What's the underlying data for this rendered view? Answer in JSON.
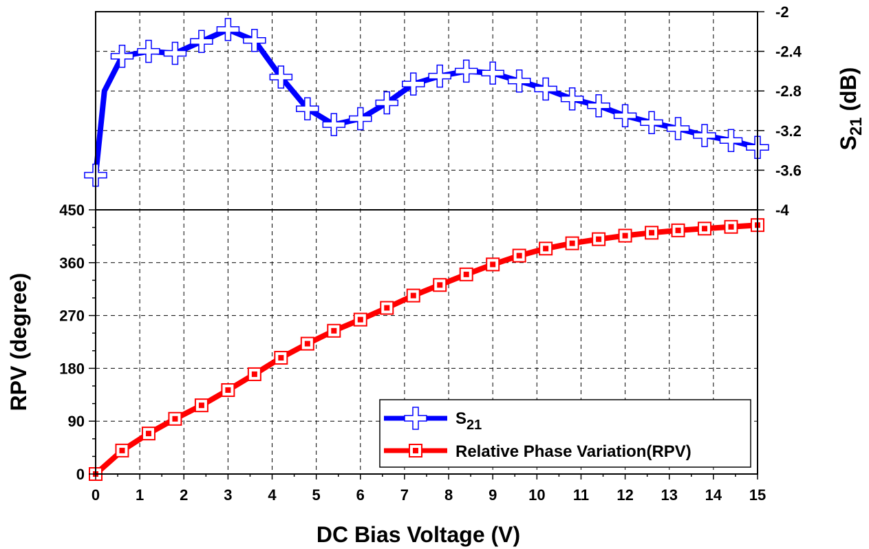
{
  "chart_data": {
    "type": "line",
    "xlabel": "DC Bias Voltage (V)",
    "xlim": [
      0,
      15
    ],
    "xticks": [
      "0",
      "1",
      "2",
      "3",
      "4",
      "5",
      "6",
      "7",
      "8",
      "9",
      "10",
      "11",
      "12",
      "13",
      "14",
      "15"
    ],
    "top_panel": {
      "ylabel_main": "S",
      "ylabel_sub": "21",
      "ylabel_unit": " (dB)",
      "ylim": [
        -4,
        -2
      ],
      "yticks": [
        "-2",
        "-2.4",
        "-2.8",
        "-3.2",
        "-3.6",
        "-4"
      ],
      "ytick_values": [
        -2,
        -2.4,
        -2.8,
        -3.2,
        -3.6,
        -4
      ],
      "axis_side": "right"
    },
    "bottom_panel": {
      "ylabel": "RPV (degree)",
      "ylim": [
        0,
        450
      ],
      "yticks": [
        "450",
        "360",
        "270",
        "180",
        "90",
        "0"
      ],
      "ytick_values": [
        450,
        360,
        270,
        180,
        90,
        0
      ],
      "axis_side": "left"
    },
    "grid": true,
    "legend_placement": "bottom-right",
    "series": [
      {
        "name": "S",
        "name_sub": "21",
        "panel": "top",
        "color": "#0000ff",
        "marker": "cross",
        "x": [
          0,
          0.2,
          0.6,
          1.2,
          1.8,
          2.4,
          3.0,
          3.6,
          4.2,
          4.8,
          5.4,
          6.0,
          6.6,
          7.2,
          7.8,
          8.4,
          9.0,
          9.6,
          10.2,
          10.8,
          11.4,
          12.0,
          12.6,
          13.2,
          13.8,
          14.4,
          15.0
        ],
        "y": [
          -3.65,
          -2.8,
          -2.45,
          -2.4,
          -2.42,
          -2.3,
          -2.18,
          -2.29,
          -2.66,
          -2.98,
          -3.14,
          -3.08,
          -2.92,
          -2.73,
          -2.65,
          -2.6,
          -2.62,
          -2.7,
          -2.78,
          -2.88,
          -2.95,
          -3.05,
          -3.12,
          -3.18,
          -3.25,
          -3.3,
          -3.37
        ],
        "marker_points": [
          0,
          2,
          3,
          4,
          5,
          6,
          7,
          8,
          9,
          10,
          11,
          12,
          13,
          14,
          15,
          16,
          17,
          18,
          19,
          20,
          21,
          22,
          23,
          24,
          25,
          26
        ]
      },
      {
        "name": "Relative Phase Variation(RPV)",
        "panel": "bottom",
        "color": "#ff0000",
        "marker": "square",
        "x": [
          0,
          0.6,
          1.2,
          1.8,
          2.4,
          3.0,
          3.6,
          4.2,
          4.8,
          5.4,
          6.0,
          6.6,
          7.2,
          7.8,
          8.4,
          9.0,
          9.6,
          10.2,
          10.8,
          11.4,
          12.0,
          12.6,
          13.2,
          13.8,
          14.4,
          15.0
        ],
        "y": [
          0,
          40,
          69,
          94,
          117,
          143,
          170,
          198,
          222,
          244,
          263,
          283,
          304,
          322,
          340,
          357,
          372,
          384,
          393,
          400,
          406,
          411,
          415,
          418,
          421,
          424
        ]
      }
    ]
  },
  "colors": {
    "s21": "#0000ff",
    "rpv": "#ff0000"
  }
}
